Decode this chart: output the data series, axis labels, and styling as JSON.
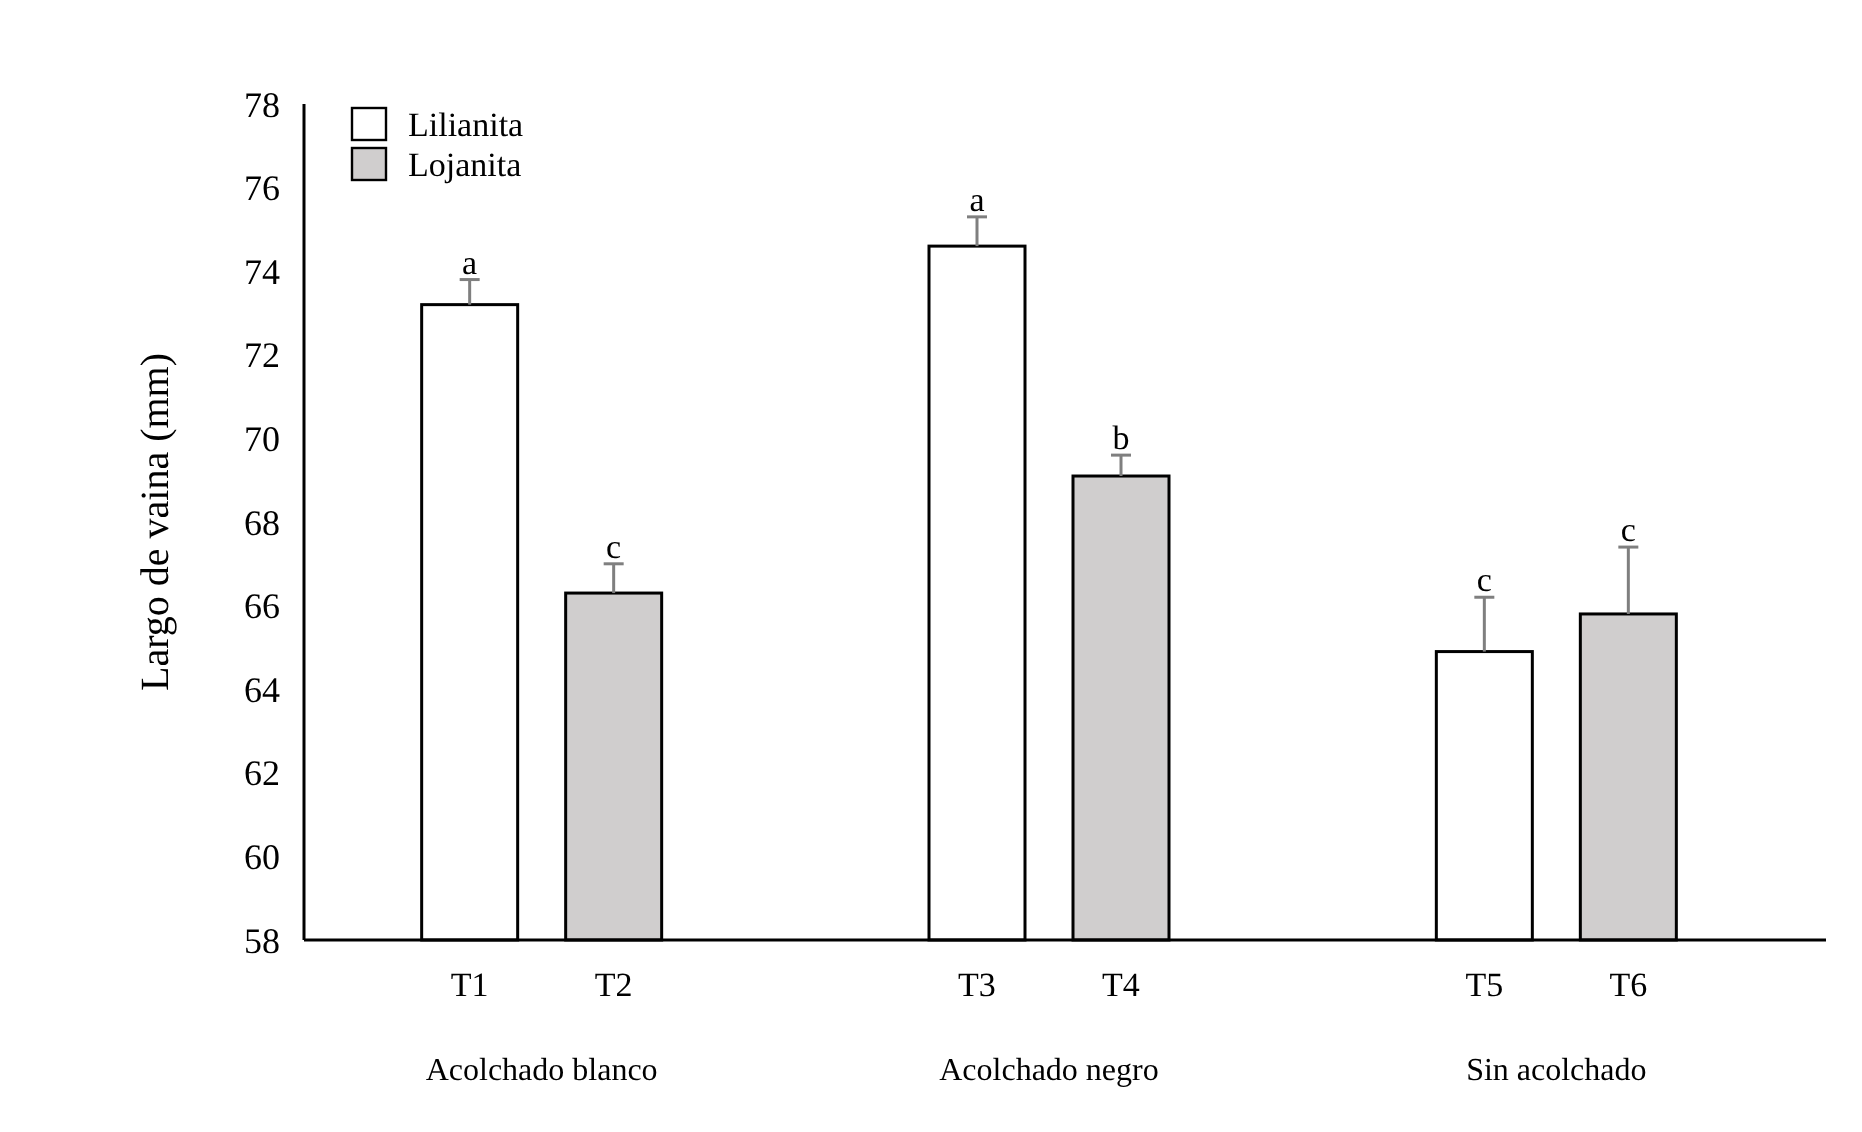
{
  "chart_data": {
    "type": "bar",
    "ylabel": "Largo de vaina (mm)",
    "categories": [
      "T1",
      "T2",
      "T3",
      "T4",
      "T5",
      "T6"
    ],
    "series": [
      {
        "name": "Lilianita",
        "color": "#ffffff",
        "values": [
          73.2,
          null,
          74.6,
          null,
          64.9,
          null
        ],
        "errors": [
          [
            73.2,
            73.8
          ],
          null,
          [
            74.6,
            75.3
          ],
          null,
          [
            64.9,
            66.2
          ],
          null
        ],
        "value_labels": [
          "a",
          null,
          "a",
          null,
          "c",
          null
        ]
      },
      {
        "name": "Lojanita",
        "color": "#d0cece",
        "values": [
          null,
          66.3,
          null,
          69.1,
          null,
          65.8
        ],
        "errors": [
          null,
          [
            66.3,
            67.0
          ],
          null,
          [
            69.1,
            69.6
          ],
          null,
          [
            65.8,
            67.4
          ]
        ],
        "value_labels": [
          null,
          "c",
          null,
          "b",
          null,
          "c"
        ]
      }
    ],
    "annotations": [
      "Acolchado blanco",
      "Acolchado negro",
      "Sin acolchado"
    ],
    "ylim": [
      58,
      78
    ],
    "yticks": [
      58,
      60,
      62,
      64,
      66,
      68,
      70,
      72,
      74,
      76,
      78
    ],
    "legend": "top left",
    "grid": false
  }
}
